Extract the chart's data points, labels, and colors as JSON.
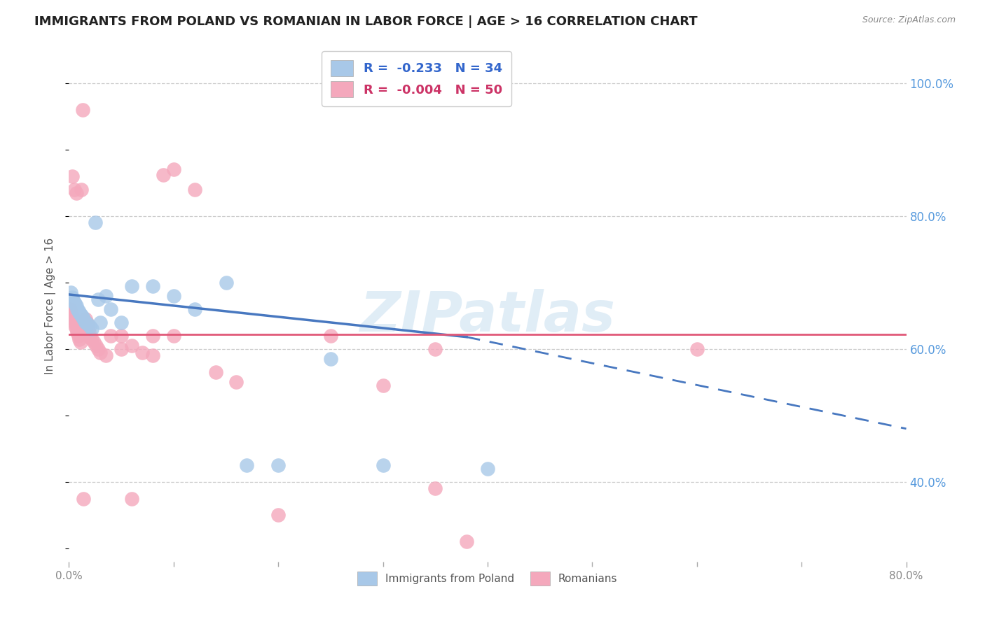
{
  "title": "IMMIGRANTS FROM POLAND VS ROMANIAN IN LABOR FORCE | AGE > 16 CORRELATION CHART",
  "source": "Source: ZipAtlas.com",
  "ylabel": "In Labor Force | Age > 16",
  "xlim": [
    0.0,
    0.8
  ],
  "ylim": [
    0.28,
    1.05
  ],
  "yticks": [
    0.4,
    0.6,
    0.8,
    1.0
  ],
  "ytick_labels": [
    "40.0%",
    "60.0%",
    "80.0%",
    "100.0%"
  ],
  "xtick_positions": [
    0.0,
    0.8
  ],
  "xtick_labels": [
    "0.0%",
    "80.0%"
  ],
  "poland_r": -0.233,
  "poland_n": 34,
  "romanian_r": -0.004,
  "romanian_n": 50,
  "poland_color": "#a8c8e8",
  "romanian_color": "#f4a8bc",
  "poland_line_color": "#4878c0",
  "romanian_line_color": "#e05878",
  "watermark": "ZIPatlas",
  "poland_x": [
    0.002,
    0.003,
    0.004,
    0.005,
    0.006,
    0.007,
    0.008,
    0.009,
    0.01,
    0.011,
    0.012,
    0.013,
    0.014,
    0.015,
    0.016,
    0.018,
    0.02,
    0.022,
    0.025,
    0.028,
    0.03,
    0.035,
    0.04,
    0.05,
    0.06,
    0.08,
    0.1,
    0.12,
    0.15,
    0.17,
    0.2,
    0.25,
    0.3,
    0.4
  ],
  "poland_y": [
    0.685,
    0.678,
    0.672,
    0.67,
    0.668,
    0.665,
    0.66,
    0.658,
    0.655,
    0.652,
    0.65,
    0.648,
    0.645,
    0.642,
    0.64,
    0.638,
    0.635,
    0.63,
    0.79,
    0.675,
    0.64,
    0.68,
    0.66,
    0.64,
    0.695,
    0.695,
    0.68,
    0.66,
    0.7,
    0.425,
    0.425,
    0.585,
    0.425,
    0.42
  ],
  "romanian_x": [
    0.001,
    0.002,
    0.003,
    0.004,
    0.005,
    0.006,
    0.007,
    0.008,
    0.009,
    0.01,
    0.011,
    0.012,
    0.013,
    0.014,
    0.015,
    0.016,
    0.017,
    0.018,
    0.019,
    0.02,
    0.022,
    0.024,
    0.026,
    0.028,
    0.03,
    0.035,
    0.04,
    0.05,
    0.06,
    0.07,
    0.08,
    0.09,
    0.1,
    0.12,
    0.14,
    0.16,
    0.2,
    0.25,
    0.3,
    0.35,
    0.38,
    0.05,
    0.06,
    0.08,
    0.1,
    0.003,
    0.005,
    0.007,
    0.35,
    0.6
  ],
  "romanian_y": [
    0.66,
    0.655,
    0.65,
    0.645,
    0.64,
    0.635,
    0.63,
    0.625,
    0.62,
    0.615,
    0.61,
    0.84,
    0.96,
    0.375,
    0.625,
    0.645,
    0.64,
    0.635,
    0.625,
    0.618,
    0.615,
    0.61,
    0.605,
    0.6,
    0.595,
    0.59,
    0.62,
    0.6,
    0.605,
    0.595,
    0.59,
    0.862,
    0.87,
    0.84,
    0.565,
    0.55,
    0.35,
    0.62,
    0.545,
    0.6,
    0.31,
    0.62,
    0.375,
    0.62,
    0.62,
    0.86,
    0.84,
    0.835,
    0.39,
    0.6
  ],
  "poland_line_start_x": 0.0,
  "poland_line_start_y": 0.682,
  "poland_line_solid_end_x": 0.38,
  "poland_line_solid_end_y": 0.618,
  "poland_line_end_x": 0.8,
  "poland_line_end_y": 0.48,
  "romanian_line_y": 0.622,
  "grid_color": "#cccccc",
  "background_color": "#ffffff"
}
